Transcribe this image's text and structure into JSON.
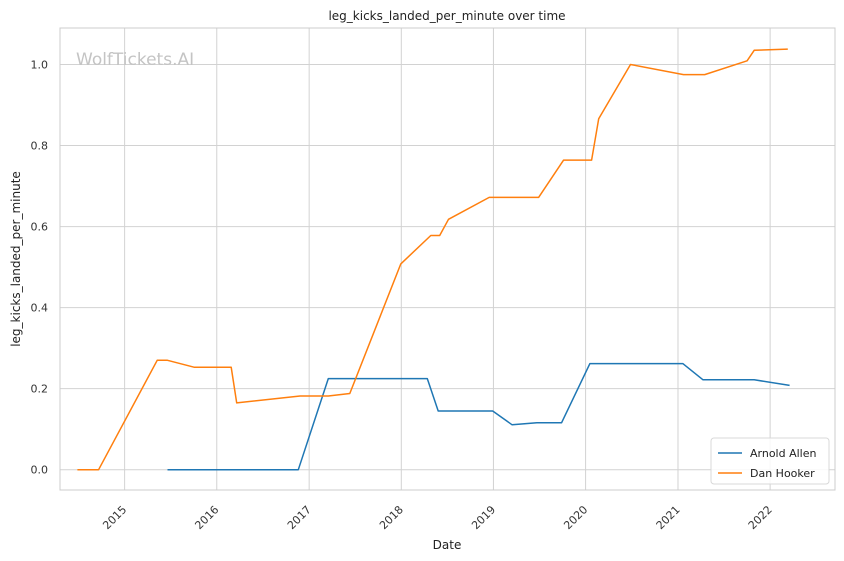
{
  "chart_data": {
    "type": "line",
    "title": "leg_kicks_landed_per_minute over time",
    "xlabel": "Date",
    "ylabel": "leg_kicks_landed_per_minute",
    "watermark": "WolfTickets.AI",
    "grid": true,
    "legend_position": "bottom-right",
    "xlim": [
      "2014-04-20",
      "2022-09-15"
    ],
    "ylim": [
      -0.05,
      1.09
    ],
    "x_ticks": [
      {
        "date": "2015-01-01",
        "label": "2015"
      },
      {
        "date": "2016-01-01",
        "label": "2016"
      },
      {
        "date": "2017-01-01",
        "label": "2017"
      },
      {
        "date": "2018-01-01",
        "label": "2018"
      },
      {
        "date": "2019-01-01",
        "label": "2019"
      },
      {
        "date": "2020-01-01",
        "label": "2020"
      },
      {
        "date": "2021-01-01",
        "label": "2021"
      },
      {
        "date": "2022-01-01",
        "label": "2022"
      }
    ],
    "y_ticks": [
      {
        "value": 0.0,
        "label": "0.0"
      },
      {
        "value": 0.2,
        "label": "0.2"
      },
      {
        "value": 0.4,
        "label": "0.4"
      },
      {
        "value": 0.6,
        "label": "0.6"
      },
      {
        "value": 0.8,
        "label": "0.8"
      },
      {
        "value": 1.0,
        "label": "1.0"
      }
    ],
    "series": [
      {
        "name": "Arnold Allen",
        "color": "#1f77b4",
        "points": [
          {
            "x": "2015-06-20",
            "y": 0.0
          },
          {
            "x": "2016-11-19",
            "y": 0.0
          },
          {
            "x": "2017-03-18",
            "y": 0.225
          },
          {
            "x": "2018-04-14",
            "y": 0.225
          },
          {
            "x": "2018-05-27",
            "y": 0.145
          },
          {
            "x": "2018-12-29",
            "y": 0.145
          },
          {
            "x": "2019-03-16",
            "y": 0.111
          },
          {
            "x": "2019-06-22",
            "y": 0.116
          },
          {
            "x": "2019-09-28",
            "y": 0.116
          },
          {
            "x": "2020-01-18",
            "y": 0.262
          },
          {
            "x": "2021-01-20",
            "y": 0.262
          },
          {
            "x": "2021-04-10",
            "y": 0.222
          },
          {
            "x": "2021-10-30",
            "y": 0.222
          },
          {
            "x": "2022-03-19",
            "y": 0.208
          }
        ]
      },
      {
        "name": "Dan Hooker",
        "color": "#ff7f0e",
        "points": [
          {
            "x": "2014-06-28",
            "y": 0.0
          },
          {
            "x": "2014-09-20",
            "y": 0.0
          },
          {
            "x": "2015-05-10",
            "y": 0.27
          },
          {
            "x": "2015-06-20",
            "y": 0.27
          },
          {
            "x": "2015-10-03",
            "y": 0.253
          },
          {
            "x": "2016-02-27",
            "y": 0.253
          },
          {
            "x": "2016-03-20",
            "y": 0.165
          },
          {
            "x": "2016-11-26",
            "y": 0.182
          },
          {
            "x": "2017-03-18",
            "y": 0.182
          },
          {
            "x": "2017-06-11",
            "y": 0.188
          },
          {
            "x": "2017-12-30",
            "y": 0.508
          },
          {
            "x": "2018-04-28",
            "y": 0.578
          },
          {
            "x": "2018-06-02",
            "y": 0.578
          },
          {
            "x": "2018-07-07",
            "y": 0.618
          },
          {
            "x": "2018-12-15",
            "y": 0.672
          },
          {
            "x": "2019-06-29",
            "y": 0.672
          },
          {
            "x": "2019-10-06",
            "y": 0.764
          },
          {
            "x": "2020-01-25",
            "y": 0.764
          },
          {
            "x": "2020-02-22",
            "y": 0.866
          },
          {
            "x": "2020-06-27",
            "y": 1.0
          },
          {
            "x": "2021-01-23",
            "y": 0.975
          },
          {
            "x": "2021-04-17",
            "y": 0.975
          },
          {
            "x": "2021-10-02",
            "y": 1.009
          },
          {
            "x": "2021-10-30",
            "y": 1.035
          },
          {
            "x": "2022-03-12",
            "y": 1.038
          }
        ]
      }
    ]
  }
}
